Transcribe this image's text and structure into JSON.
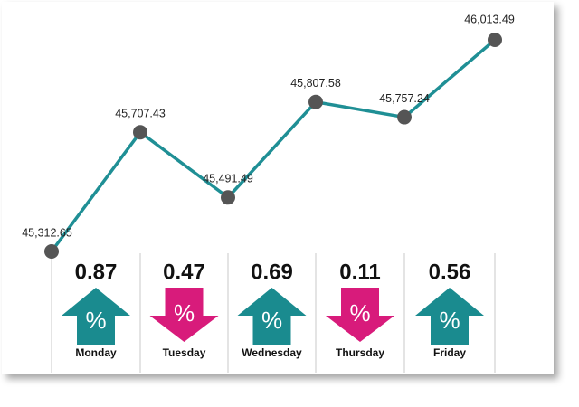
{
  "chart_data": {
    "type": "line",
    "categories": [
      null,
      "Monday",
      "Tuesday",
      "Wednesday",
      "Thursday",
      "Friday"
    ],
    "values": [
      45312.65,
      45707.43,
      45491.49,
      45807.58,
      45757.24,
      46013.49
    ],
    "value_labels": [
      "45,312.65",
      "45,707.43",
      "45,491.49",
      "45,807.58",
      "45,757.24",
      "46,013.49"
    ],
    "color": "#1f8f95",
    "changes": {
      "values": [
        0.87,
        0.47,
        0.69,
        0.11,
        0.56
      ],
      "directions": [
        "up",
        "down",
        "up",
        "down",
        "up"
      ],
      "symbol": "%",
      "colors": {
        "up": "#1a8b8f",
        "down": "#d81b7b"
      }
    }
  }
}
